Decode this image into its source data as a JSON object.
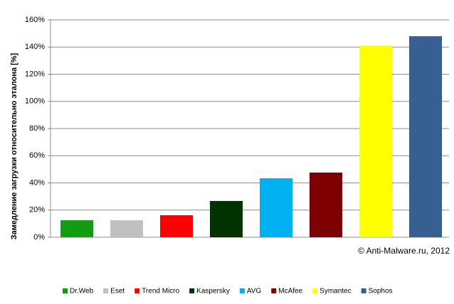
{
  "chart_data": {
    "type": "bar",
    "y_label": "Замедление загрузки относительно  эталона  [%]",
    "annotation": "© Anti-Malware.ru,  2012",
    "categories": [
      "Dr.Web",
      "Eset",
      "Trend Micro",
      "Kaspersky",
      "AVG",
      "McAfee",
      "Symantec",
      "Sophos"
    ],
    "values": [
      12.5,
      12.5,
      16.2,
      26.7,
      43.4,
      47.6,
      141,
      148
    ],
    "colors": [
      "#129c12",
      "#c0c0c0",
      "#ff0000",
      "#003300",
      "#00b0f0",
      "#7f0000",
      "#ffff00",
      "#376092"
    ],
    "ylim": [
      0,
      160
    ],
    "yticks": [
      {
        "value": 0,
        "label": "0%"
      },
      {
        "value": 20,
        "label": "20%"
      },
      {
        "value": 40,
        "label": "40%"
      },
      {
        "value": 60,
        "label": "60%"
      },
      {
        "value": 80,
        "label": "80%"
      },
      {
        "value": 100,
        "label": "100%"
      },
      {
        "value": 120,
        "label": "120%"
      },
      {
        "value": 140,
        "label": "140%"
      },
      {
        "value": 160,
        "label": "160%"
      }
    ],
    "grid": true,
    "legend": "bottom"
  }
}
